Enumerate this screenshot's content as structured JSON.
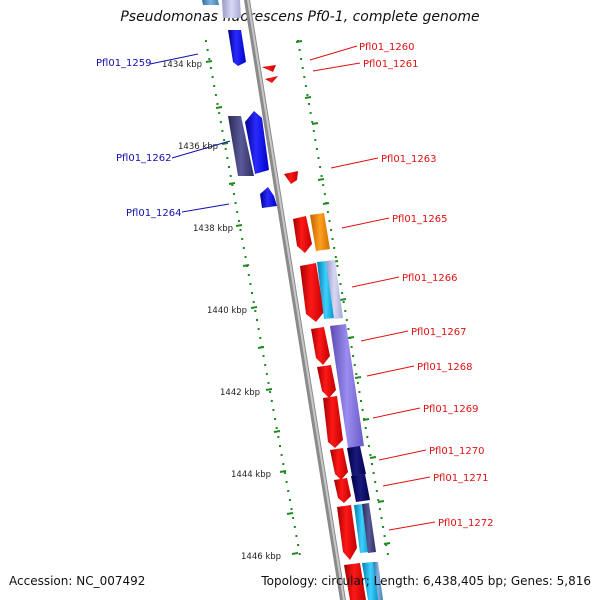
{
  "title": "Pseudomonas fluorescens Pf0-1, complete genome",
  "footer": {
    "accession": "Accession: NC_007492",
    "stats": "Topology: circular; Length: 6,438,405 bp; Genes: 5,816"
  },
  "colors": {
    "forward_label": "#1010b0",
    "reverse_label": "#e01010",
    "tick": "#1f8a1f",
    "backbone": "#8a8a8a"
  },
  "scale_labels": [
    "1434 kbp",
    "1436 kbp",
    "1438 kbp",
    "1440 kbp",
    "1442 kbp",
    "1444 kbp",
    "1446 kbp"
  ],
  "genes_forward": [
    "Pfl01_1259",
    "Pfl01_1262",
    "Pfl01_1264"
  ],
  "genes_reverse": [
    "Pfl01_1260",
    "Pfl01_1261",
    "Pfl01_1263",
    "Pfl01_1265",
    "Pfl01_1266",
    "Pfl01_1267",
    "Pfl01_1268",
    "Pfl01_1269",
    "Pfl01_1270",
    "Pfl01_1271",
    "Pfl01_1272"
  ]
}
